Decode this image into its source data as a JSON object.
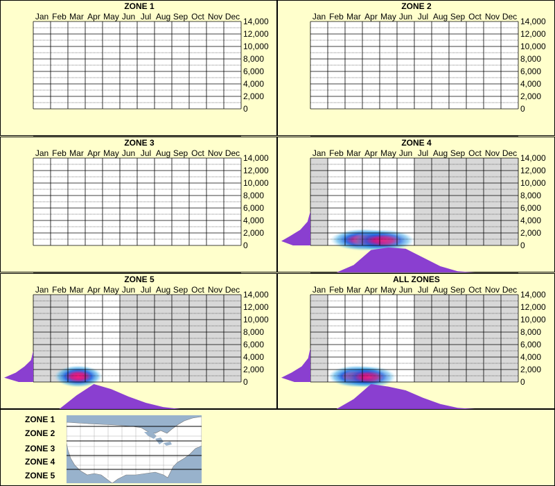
{
  "months": [
    "Jan",
    "Feb",
    "Mar",
    "Apr",
    "May",
    "Jun",
    "Jul",
    "Aug",
    "Sep",
    "Oct",
    "Nov",
    "Dec"
  ],
  "y_ticks": [
    "14,000",
    "12,000",
    "10,000",
    "8,000",
    "6,000",
    "4,000",
    "2,000",
    "0"
  ],
  "legend": {
    "zones": [
      "ZONE 1",
      "ZONE 2",
      "ZONE 3",
      "ZONE 4",
      "ZONE 5"
    ]
  },
  "colors": {
    "background": "#ffffcc",
    "shade": "#d8d8d8",
    "density": "#8a3fd0",
    "hot": "#ff1a7a",
    "cool": "#1a5fe0",
    "map_water": "#98b2cc"
  },
  "chart_data": [
    {
      "type": "heatmap",
      "title": "ZONE 1",
      "x_categories": [
        "Jan",
        "Feb",
        "Mar",
        "Apr",
        "May",
        "Jun",
        "Jul",
        "Aug",
        "Sep",
        "Oct",
        "Nov",
        "Dec"
      ],
      "ylim": [
        0,
        14000
      ],
      "has_data": false,
      "observed_months": [],
      "hotspots": []
    },
    {
      "type": "heatmap",
      "title": "ZONE 2",
      "x_categories": [
        "Jan",
        "Feb",
        "Mar",
        "Apr",
        "May",
        "Jun",
        "Jul",
        "Aug",
        "Sep",
        "Oct",
        "Nov",
        "Dec"
      ],
      "ylim": [
        0,
        14000
      ],
      "has_data": false,
      "observed_months": [],
      "hotspots": []
    },
    {
      "type": "heatmap",
      "title": "ZONE 3",
      "x_categories": [
        "Jan",
        "Feb",
        "Mar",
        "Apr",
        "May",
        "Jun",
        "Jul",
        "Aug",
        "Sep",
        "Oct",
        "Nov",
        "Dec"
      ],
      "ylim": [
        0,
        14000
      ],
      "has_data": false,
      "observed_months": [],
      "hotspots": []
    },
    {
      "type": "heatmap",
      "title": "ZONE 4",
      "x_categories": [
        "Jan",
        "Feb",
        "Mar",
        "Apr",
        "May",
        "Jun",
        "Jul",
        "Aug",
        "Sep",
        "Oct",
        "Nov",
        "Dec"
      ],
      "ylim": [
        0,
        14000
      ],
      "has_data": true,
      "observed_months": [
        "Feb",
        "Mar",
        "Apr",
        "May",
        "Jun"
      ],
      "hotspots": [
        {
          "month_pos": 3.1,
          "y": 900,
          "w": 1.4,
          "strength": 1.0
        },
        {
          "month_pos": 4.2,
          "y": 800,
          "w": 1.3,
          "strength": 0.85
        }
      ],
      "month_density": [
        0,
        0,
        0.3,
        0.9,
        1.0,
        0.95,
        0.6,
        0.25,
        0.05,
        0,
        0,
        0
      ],
      "elev_density": [
        {
          "y": 0,
          "d": 0.6
        },
        {
          "y": 700,
          "d": 1.0
        },
        {
          "y": 1500,
          "d": 0.7
        },
        {
          "y": 2500,
          "d": 0.35
        },
        {
          "y": 3800,
          "d": 0.1
        },
        {
          "y": 5500,
          "d": 0.0
        }
      ]
    },
    {
      "type": "heatmap",
      "title": "ZONE 5",
      "x_categories": [
        "Jan",
        "Feb",
        "Mar",
        "Apr",
        "May",
        "Jun",
        "Jul",
        "Aug",
        "Sep",
        "Oct",
        "Nov",
        "Dec"
      ],
      "ylim": [
        0,
        14000
      ],
      "has_data": true,
      "observed_months": [
        "Mar",
        "Apr",
        "May"
      ],
      "hotspots": [
        {
          "month_pos": 2.6,
          "y": 900,
          "w": 1.0,
          "strength": 1.0
        }
      ],
      "month_density": [
        0,
        0,
        0.55,
        1.0,
        0.8,
        0.5,
        0.25,
        0.08,
        0,
        0,
        0,
        0
      ],
      "elev_density": [
        {
          "y": 0,
          "d": 0.5
        },
        {
          "y": 700,
          "d": 1.0
        },
        {
          "y": 1500,
          "d": 0.6
        },
        {
          "y": 2500,
          "d": 0.3
        },
        {
          "y": 3500,
          "d": 0.08
        },
        {
          "y": 5000,
          "d": 0.0
        }
      ]
    },
    {
      "type": "heatmap",
      "title": "ALL ZONES",
      "x_categories": [
        "Jan",
        "Feb",
        "Mar",
        "Apr",
        "May",
        "Jun",
        "Jul",
        "Aug",
        "Sep",
        "Oct",
        "Nov",
        "Dec"
      ],
      "ylim": [
        0,
        14000
      ],
      "has_data": true,
      "observed_months": [
        "Feb",
        "Mar",
        "Apr",
        "May",
        "Jun"
      ],
      "hotspots": [
        {
          "month_pos": 2.7,
          "y": 900,
          "w": 1.2,
          "strength": 1.0
        },
        {
          "month_pos": 3.4,
          "y": 800,
          "w": 1.1,
          "strength": 0.8
        }
      ],
      "month_density": [
        0,
        0,
        0.4,
        1.0,
        0.9,
        0.75,
        0.45,
        0.2,
        0.05,
        0,
        0,
        0
      ],
      "elev_density": [
        {
          "y": 0,
          "d": 0.55
        },
        {
          "y": 700,
          "d": 1.0
        },
        {
          "y": 1500,
          "d": 0.65
        },
        {
          "y": 2500,
          "d": 0.3
        },
        {
          "y": 3800,
          "d": 0.08
        },
        {
          "y": 5500,
          "d": 0.0
        }
      ]
    }
  ]
}
